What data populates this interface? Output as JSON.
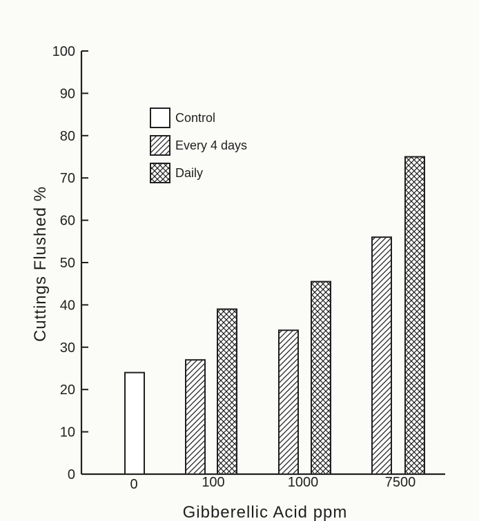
{
  "chart_data": {
    "type": "bar",
    "categories": [
      "0",
      "100",
      "1000",
      "7500"
    ],
    "series": [
      {
        "name": "Control",
        "pattern": "none",
        "values": [
          24,
          null,
          null,
          null
        ]
      },
      {
        "name": "Every 4 days",
        "pattern": "diagonal-hatch",
        "values": [
          null,
          27,
          34,
          56
        ]
      },
      {
        "name": "Daily",
        "pattern": "cross-hatch",
        "values": [
          null,
          39,
          45.5,
          75
        ]
      }
    ],
    "xlabel": "Gibberellic Acid ppm",
    "ylabel": "Cuttings Flushed %",
    "ylim": [
      0,
      100
    ],
    "yticks": [
      "0",
      "10",
      "20",
      "30",
      "40",
      "50",
      "60",
      "70",
      "80",
      "90",
      "100"
    ],
    "grid": false,
    "legend": {
      "placement": "upper-left",
      "items": [
        {
          "label": "Control",
          "pattern": "none"
        },
        {
          "label": "Every 4 days",
          "pattern": "diagonal-hatch"
        },
        {
          "label": "Daily",
          "pattern": "cross-hatch"
        }
      ]
    },
    "colors": {
      "ink": "#1f1f1f",
      "background": "#fbfbf7",
      "bar_fill": "#ffffff"
    }
  }
}
